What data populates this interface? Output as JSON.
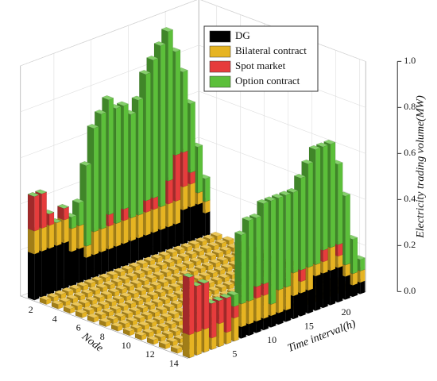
{
  "chart_data": {
    "type": "bar3d",
    "xlabel": "Node",
    "ylabel": "Time interval(h)",
    "zlabel": "Electricity trading volume(MW)",
    "zlim": [
      0,
      1
    ],
    "zticks": [
      {
        "value": 0,
        "label": "0.0"
      },
      0.2,
      0.4,
      0.6,
      0.8,
      {
        "value": 1,
        "label": "1.0"
      }
    ],
    "xticks": [
      2,
      4,
      6,
      8,
      10,
      12,
      14
    ],
    "yticks": [
      5,
      10,
      15,
      20
    ],
    "series": [
      {
        "name": "DG",
        "color": "#000000"
      },
      {
        "name": "Bilateral contract",
        "color": "#e6b422"
      },
      {
        "name": "Spot market",
        "color": "#e63c3c"
      },
      {
        "name": "Option contract",
        "color": "#5cbf3a"
      }
    ],
    "rows": [
      {
        "node": 1,
        "layers": [
          {
            "series": "DG",
            "values": [
              0.2,
              0.2,
              0.2,
              0.2,
              0.2,
              0.15,
              0.15,
              0.1,
              0.1,
              0.1,
              0.1,
              0.1,
              0.1,
              0.1,
              0.1,
              0.1,
              0.1,
              0.1,
              0.1,
              0.1,
              0.15,
              0.15,
              0.15,
              0.1
            ]
          },
          {
            "series": "Bilateral contract",
            "values": [
              0.1,
              0.1,
              0.1,
              0.1,
              0.1,
              0.1,
              0.1,
              0.05,
              0.1,
              0.1,
              0.1,
              0.1,
              0.1,
              0.1,
              0.1,
              0.1,
              0.1,
              0.1,
              0.1,
              0.1,
              0.1,
              0.1,
              0.05,
              0.05
            ]
          },
          {
            "series": "Spot market",
            "values": [
              0.15,
              0.15,
              0.05,
              0,
              0.05,
              0,
              0,
              0,
              0,
              0,
              0.05,
              0,
              0.05,
              0,
              0,
              0.05,
              0.05,
              0,
              0.1,
              0.2,
              0.15,
              0.05,
              0,
              0
            ]
          },
          {
            "series": "Option contract",
            "values": [
              0,
              0,
              0,
              0,
              0,
              0.05,
              0.1,
              0.35,
              0.45,
              0.5,
              0.5,
              0.5,
              0.45,
              0.45,
              0.5,
              0.55,
              0.6,
              0.7,
              0.65,
              0.45,
              0.35,
              0.3,
              0.2,
              0.1
            ]
          }
        ]
      },
      {
        "node": 2,
        "layers": [
          {
            "series": "Bilateral contract",
            "values": [
              0.02,
              0.02,
              0.02,
              0.02,
              0.02,
              0.02,
              0.02,
              0.02,
              0.02,
              0.02,
              0.02,
              0.02,
              0.02,
              0.02,
              0.02,
              0.02,
              0.02,
              0.02,
              0.02,
              0.02,
              0.02,
              0.02,
              0.02,
              0.02
            ]
          }
        ]
      },
      {
        "node": 3,
        "layers": [
          {
            "series": "Bilateral contract",
            "values": [
              0.02,
              0.02,
              0.02,
              0.02,
              0.02,
              0.02,
              0.02,
              0.02,
              0.02,
              0.02,
              0.02,
              0.02,
              0.02,
              0.02,
              0.02,
              0.02,
              0.02,
              0.02,
              0.02,
              0.02,
              0.02,
              0.02,
              0.02,
              0.02
            ]
          }
        ]
      },
      {
        "node": 4,
        "layers": [
          {
            "series": "Bilateral contract",
            "values": [
              0.02,
              0.02,
              0.02,
              0.02,
              0.02,
              0.02,
              0.02,
              0.02,
              0.02,
              0.02,
              0.02,
              0.02,
              0.02,
              0.02,
              0.02,
              0.02,
              0.02,
              0.02,
              0.02,
              0.02,
              0.02,
              0.02,
              0.02,
              0.02
            ]
          }
        ]
      },
      {
        "node": 5,
        "layers": [
          {
            "series": "Bilateral contract",
            "values": [
              0.02,
              0.02,
              0.02,
              0.02,
              0.02,
              0.02,
              0.02,
              0.02,
              0.02,
              0.02,
              0.02,
              0.02,
              0.02,
              0.02,
              0.02,
              0.02,
              0.02,
              0.02,
              0.02,
              0.02,
              0.02,
              0.02,
              0.02,
              0.02
            ]
          }
        ]
      },
      {
        "node": 6,
        "layers": [
          {
            "series": "Bilateral contract",
            "values": [
              0.02,
              0.02,
              0.02,
              0.02,
              0.02,
              0.02,
              0.02,
              0.02,
              0.02,
              0.02,
              0.02,
              0.02,
              0.02,
              0.02,
              0.02,
              0.02,
              0.02,
              0.02,
              0.02,
              0.02,
              0.02,
              0.02,
              0.02,
              0.02
            ]
          }
        ]
      },
      {
        "node": 7,
        "layers": [
          {
            "series": "Bilateral contract",
            "values": [
              0.02,
              0.02,
              0.02,
              0.02,
              0.02,
              0.02,
              0.02,
              0.02,
              0.02,
              0.02,
              0.02,
              0.02,
              0.02,
              0.02,
              0.02,
              0.02,
              0.02,
              0.02,
              0.02,
              0.02,
              0.02,
              0.02,
              0.02,
              0.02
            ]
          }
        ]
      },
      {
        "node": 8,
        "layers": [
          {
            "series": "Bilateral contract",
            "values": [
              0.02,
              0.02,
              0.02,
              0.02,
              0.02,
              0.02,
              0.02,
              0.02,
              0.02,
              0.02,
              0.02,
              0.02,
              0.02,
              0.02,
              0.02,
              0.02,
              0.02,
              0.02,
              0.02,
              0.02,
              0.02,
              0.02,
              0.02,
              0.02
            ]
          }
        ]
      },
      {
        "node": 9,
        "layers": [
          {
            "series": "Bilateral contract",
            "values": [
              0.02,
              0.02,
              0.02,
              0.02,
              0.02,
              0.02,
              0.02,
              0.02,
              0.02,
              0.02,
              0.02,
              0.02,
              0.02,
              0.02,
              0.02,
              0.02,
              0.02,
              0.02,
              0.02,
              0.02,
              0.02,
              0.02,
              0.02,
              0.02
            ]
          }
        ]
      },
      {
        "node": 10,
        "layers": [
          {
            "series": "Bilateral contract",
            "values": [
              0.02,
              0.02,
              0.02,
              0.02,
              0.02,
              0.02,
              0.02,
              0.02,
              0.02,
              0.02,
              0.02,
              0.02,
              0.02,
              0.02,
              0.02,
              0.02,
              0.02,
              0.02,
              0.02,
              0.02,
              0.02,
              0.02,
              0.02,
              0.02
            ]
          }
        ]
      },
      {
        "node": 11,
        "layers": [
          {
            "series": "Bilateral contract",
            "values": [
              0.02,
              0.02,
              0.02,
              0.02,
              0.02,
              0.02,
              0.02,
              0.02,
              0.02,
              0.02,
              0.02,
              0.02,
              0.02,
              0.02,
              0.02,
              0.02,
              0.02,
              0.02,
              0.02,
              0.02,
              0.02,
              0.02,
              0.02,
              0.02
            ]
          }
        ]
      },
      {
        "node": 12,
        "layers": [
          {
            "series": "Bilateral contract",
            "values": [
              0.02,
              0.02,
              0.02,
              0.02,
              0.02,
              0.02,
              0.02,
              0.02,
              0.02,
              0.02,
              0.02,
              0.02,
              0.02,
              0.02,
              0.02,
              0.02,
              0.02,
              0.02,
              0.02,
              0.02,
              0.02,
              0.02,
              0.02,
              0.02
            ]
          }
        ]
      },
      {
        "node": 13,
        "layers": [
          {
            "series": "Bilateral contract",
            "values": [
              0.02,
              0.02,
              0.02,
              0.02,
              0.02,
              0.02,
              0.02,
              0.02,
              0.02,
              0.02,
              0.02,
              0.02,
              0.02,
              0.02,
              0.02,
              0.02,
              0.02,
              0.02,
              0.02,
              0.02,
              0.02,
              0.02,
              0.02,
              0.02
            ]
          }
        ]
      },
      {
        "node": 14,
        "layers": [
          {
            "series": "DG",
            "values": [
              0,
              0,
              0,
              0,
              0,
              0,
              0,
              0.05,
              0.05,
              0.05,
              0.05,
              0.05,
              0.05,
              0.05,
              0.1,
              0.1,
              0.1,
              0.15,
              0.15,
              0.15,
              0.15,
              0.1,
              0.05,
              0.05
            ]
          },
          {
            "series": "Bilateral contract",
            "values": [
              0.1,
              0.1,
              0.1,
              0.05,
              0.1,
              0.05,
              0.1,
              0.1,
              0.1,
              0.1,
              0.1,
              0.05,
              0.1,
              0.1,
              0.1,
              0.05,
              0.1,
              0.05,
              0.05,
              0.1,
              0.05,
              0.05,
              0.05,
              0.05
            ]
          },
          {
            "series": "Spot market",
            "values": [
              0.25,
              0.2,
              0.2,
              0.15,
              0.1,
              0.15,
              0.05,
              0,
              0,
              0.05,
              0.05,
              0,
              0,
              0,
              0,
              0.05,
              0,
              0,
              0.05,
              0,
              0.05,
              0,
              0,
              0
            ]
          },
          {
            "series": "Option contract",
            "values": [
              0,
              0,
              0,
              0,
              0,
              0,
              0.05,
              0.3,
              0.35,
              0.3,
              0.35,
              0.45,
              0.4,
              0.4,
              0.35,
              0.4,
              0.45,
              0.5,
              0.45,
              0.45,
              0.35,
              0.3,
              0.15,
              0.05
            ]
          }
        ]
      }
    ]
  }
}
